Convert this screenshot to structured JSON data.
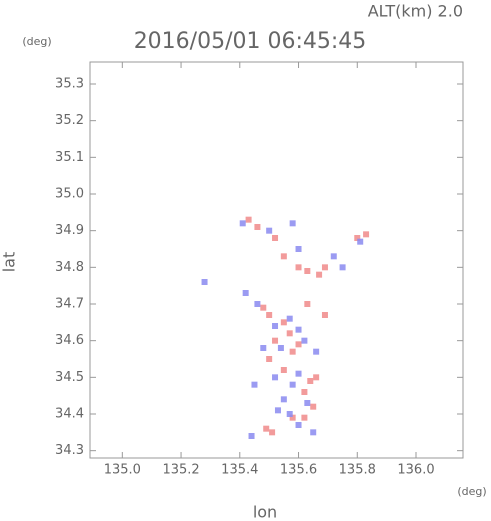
{
  "chart_data": {
    "type": "scatter",
    "title": "2016/05/01 06:45:45",
    "annotation": "ALT(km) 2.0",
    "y_unit": "(deg)",
    "x_unit": "(deg)",
    "x_label": "lon",
    "y_label": "lat",
    "xlim": [
      134.89,
      136.16
    ],
    "ylim": [
      34.28,
      35.36
    ],
    "xticks": [
      {
        "value": 135.0,
        "label": "135.0"
      },
      135.2,
      135.4,
      135.6,
      135.8,
      {
        "value": 136.0,
        "label": "136.0"
      }
    ],
    "yticks": [
      34.3,
      34.4,
      34.5,
      34.6,
      34.7,
      34.8,
      34.9,
      {
        "value": 35.0,
        "label": "35.0"
      },
      35.1,
      35.2,
      35.3
    ],
    "series": [
      {
        "color": "#f08a8a",
        "x": [
          135.43,
          135.46,
          135.52,
          135.55,
          135.6,
          135.63,
          135.67,
          135.8,
          135.83,
          135.48,
          135.5,
          135.55,
          135.57,
          135.52,
          135.58,
          135.6,
          135.5,
          135.55,
          135.64,
          135.66,
          135.62,
          135.65,
          135.62,
          135.49,
          135.51,
          135.58,
          135.69,
          135.63,
          135.69
        ],
        "values": [
          34.93,
          34.91,
          34.88,
          34.83,
          34.8,
          34.79,
          34.78,
          34.88,
          34.89,
          34.69,
          34.67,
          34.65,
          34.62,
          34.6,
          34.57,
          34.59,
          34.55,
          34.52,
          34.49,
          34.5,
          34.46,
          34.42,
          34.39,
          34.36,
          34.35,
          34.39,
          34.67,
          34.7,
          34.8
        ]
      },
      {
        "color": "#8a8af0",
        "x": [
          135.41,
          135.5,
          135.58,
          135.6,
          135.72,
          135.75,
          135.81,
          135.28,
          135.42,
          135.46,
          135.52,
          135.57,
          135.6,
          135.54,
          135.62,
          135.48,
          135.52,
          135.45,
          135.58,
          135.6,
          135.55,
          135.63,
          135.57,
          135.6,
          135.44,
          135.53,
          135.66,
          135.65
        ],
        "values": [
          34.92,
          34.9,
          34.92,
          34.85,
          34.83,
          34.8,
          34.87,
          34.76,
          34.73,
          34.7,
          34.64,
          34.66,
          34.63,
          34.58,
          34.6,
          34.58,
          34.5,
          34.48,
          34.48,
          34.51,
          34.44,
          34.43,
          34.4,
          34.37,
          34.34,
          34.41,
          34.57,
          34.35
        ]
      }
    ]
  }
}
